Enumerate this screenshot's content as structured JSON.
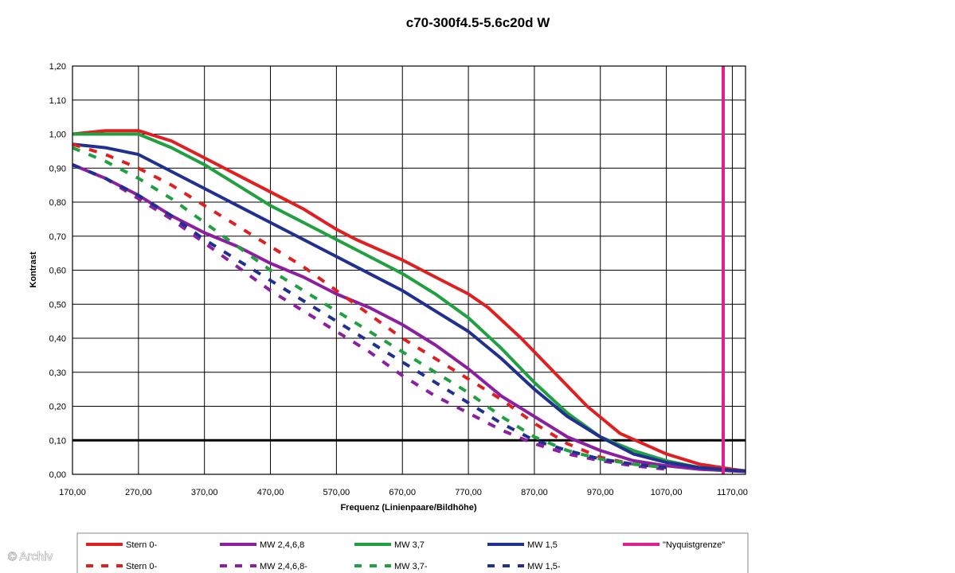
{
  "chart_data": {
    "type": "line",
    "title": "c70-300f4.5-5.6c20d W",
    "xlabel": "Frequenz (Linienpaare/Bildhöhe)",
    "ylabel": "Kontrast",
    "xlim": [
      170,
      1190
    ],
    "ylim": [
      0,
      1.2
    ],
    "xticks": [
      "170,00",
      "270,00",
      "370,00",
      "470,00",
      "570,00",
      "670,00",
      "770,00",
      "870,00",
      "970,00",
      "1070,00",
      "1170,00"
    ],
    "yticks": [
      "0,00",
      "0,10",
      "0,20",
      "0,30",
      "0,40",
      "0,50",
      "0,60",
      "0,70",
      "0,80",
      "0,90",
      "1,00",
      "1,10",
      "1,20"
    ],
    "grid": true,
    "reference_line": {
      "y": 0.1,
      "color": "#000000"
    },
    "nyquist_x": 1190,
    "series": [
      {
        "name": "Stern 0-",
        "color": "#e02020",
        "dash": false,
        "x": [
          170,
          220,
          270,
          320,
          370,
          420,
          470,
          520,
          570,
          600,
          670,
          720,
          770,
          800,
          850,
          900,
          950,
          1000,
          1070,
          1120,
          1170,
          1190
        ],
        "y": [
          1.0,
          1.01,
          1.01,
          0.98,
          0.93,
          0.88,
          0.83,
          0.78,
          0.72,
          0.69,
          0.63,
          0.58,
          0.53,
          0.49,
          0.4,
          0.3,
          0.2,
          0.12,
          0.06,
          0.03,
          0.015,
          0.01
        ]
      },
      {
        "name": "MW 2,4,6,8",
        "color": "#8b1fa0",
        "dash": false,
        "x": [
          170,
          220,
          270,
          320,
          370,
          420,
          470,
          520,
          570,
          620,
          670,
          720,
          770,
          820,
          870,
          920,
          970,
          1020,
          1070,
          1120,
          1170,
          1190
        ],
        "y": [
          0.91,
          0.87,
          0.82,
          0.76,
          0.71,
          0.67,
          0.62,
          0.58,
          0.53,
          0.49,
          0.44,
          0.38,
          0.31,
          0.23,
          0.17,
          0.11,
          0.07,
          0.04,
          0.025,
          0.015,
          0.01,
          0.008
        ]
      },
      {
        "name": "MW 3,7",
        "color": "#20a040",
        "dash": false,
        "x": [
          170,
          220,
          270,
          320,
          370,
          420,
          470,
          520,
          570,
          620,
          670,
          720,
          770,
          820,
          870,
          920,
          970,
          1020,
          1070,
          1120,
          1170,
          1190
        ],
        "y": [
          1.0,
          1.0,
          1.0,
          0.96,
          0.91,
          0.85,
          0.79,
          0.74,
          0.69,
          0.64,
          0.59,
          0.53,
          0.46,
          0.37,
          0.27,
          0.18,
          0.11,
          0.07,
          0.04,
          0.02,
          0.012,
          0.01
        ]
      },
      {
        "name": "MW 1,5",
        "color": "#203090",
        "dash": false,
        "x": [
          170,
          220,
          270,
          320,
          370,
          420,
          470,
          520,
          570,
          620,
          670,
          720,
          770,
          820,
          870,
          920,
          970,
          1020,
          1070,
          1120,
          1170,
          1190
        ],
        "y": [
          0.97,
          0.96,
          0.94,
          0.89,
          0.84,
          0.79,
          0.74,
          0.69,
          0.64,
          0.59,
          0.54,
          0.48,
          0.42,
          0.34,
          0.25,
          0.17,
          0.11,
          0.06,
          0.035,
          0.02,
          0.012,
          0.01
        ]
      },
      {
        "name": "Stern 0-",
        "color": "#e02020",
        "dash": true,
        "x": [
          170,
          220,
          270,
          320,
          370,
          420,
          470,
          520,
          570,
          620,
          670,
          720,
          770,
          820,
          870,
          920,
          970,
          1020,
          1070
        ],
        "y": [
          0.97,
          0.94,
          0.9,
          0.85,
          0.79,
          0.73,
          0.67,
          0.61,
          0.54,
          0.47,
          0.4,
          0.34,
          0.28,
          0.22,
          0.15,
          0.09,
          0.05,
          0.03,
          0.02
        ]
      },
      {
        "name": "MW 2,4,6,8-",
        "color": "#8b1fa0",
        "dash": true,
        "x": [
          170,
          220,
          270,
          320,
          370,
          420,
          470,
          520,
          570,
          620,
          670,
          720,
          770,
          820,
          870,
          920,
          970,
          1020,
          1070
        ],
        "y": [
          0.91,
          0.87,
          0.81,
          0.75,
          0.68,
          0.61,
          0.54,
          0.48,
          0.42,
          0.36,
          0.29,
          0.23,
          0.18,
          0.13,
          0.09,
          0.06,
          0.04,
          0.025,
          0.015
        ]
      },
      {
        "name": "MW 3,7-",
        "color": "#20a040",
        "dash": true,
        "x": [
          170,
          220,
          270,
          320,
          370,
          420,
          470,
          520,
          570,
          620,
          670,
          720,
          770,
          820,
          870,
          920,
          970,
          1020,
          1070
        ],
        "y": [
          0.96,
          0.92,
          0.87,
          0.81,
          0.74,
          0.67,
          0.6,
          0.54,
          0.48,
          0.42,
          0.36,
          0.3,
          0.24,
          0.17,
          0.11,
          0.07,
          0.045,
          0.03,
          0.02
        ]
      },
      {
        "name": "MW 1,5-",
        "color": "#203090",
        "dash": true,
        "x": [
          170,
          220,
          270,
          320,
          370,
          420,
          470,
          520,
          570,
          620,
          670,
          720,
          770,
          820,
          870,
          920,
          970,
          1020,
          1070
        ],
        "y": [
          0.91,
          0.87,
          0.82,
          0.76,
          0.69,
          0.63,
          0.57,
          0.51,
          0.45,
          0.39,
          0.33,
          0.27,
          0.21,
          0.15,
          0.1,
          0.07,
          0.045,
          0.03,
          0.02
        ]
      }
    ],
    "legend": {
      "placement": "bottom",
      "entries": [
        {
          "label": "Stern 0-",
          "color": "#e02020",
          "dash": false
        },
        {
          "label": "MW 2,4,6,8",
          "color": "#8b1fa0",
          "dash": false
        },
        {
          "label": "MW 3,7",
          "color": "#20a040",
          "dash": false
        },
        {
          "label": "MW 1,5",
          "color": "#203090",
          "dash": false
        },
        {
          "label": "\"Nyquistgrenze\"",
          "color": "#e0208c",
          "dash": false
        },
        {
          "label": "Stern 0-",
          "color": "#e02020",
          "dash": true
        },
        {
          "label": "MW 2,4,6,8-",
          "color": "#8b1fa0",
          "dash": true
        },
        {
          "label": "MW 3,7-",
          "color": "#20a040",
          "dash": true
        },
        {
          "label": "MW 1,5-",
          "color": "#203090",
          "dash": true
        }
      ]
    },
    "nyquist_color": "#e0208c"
  },
  "watermark": "© Archiv"
}
